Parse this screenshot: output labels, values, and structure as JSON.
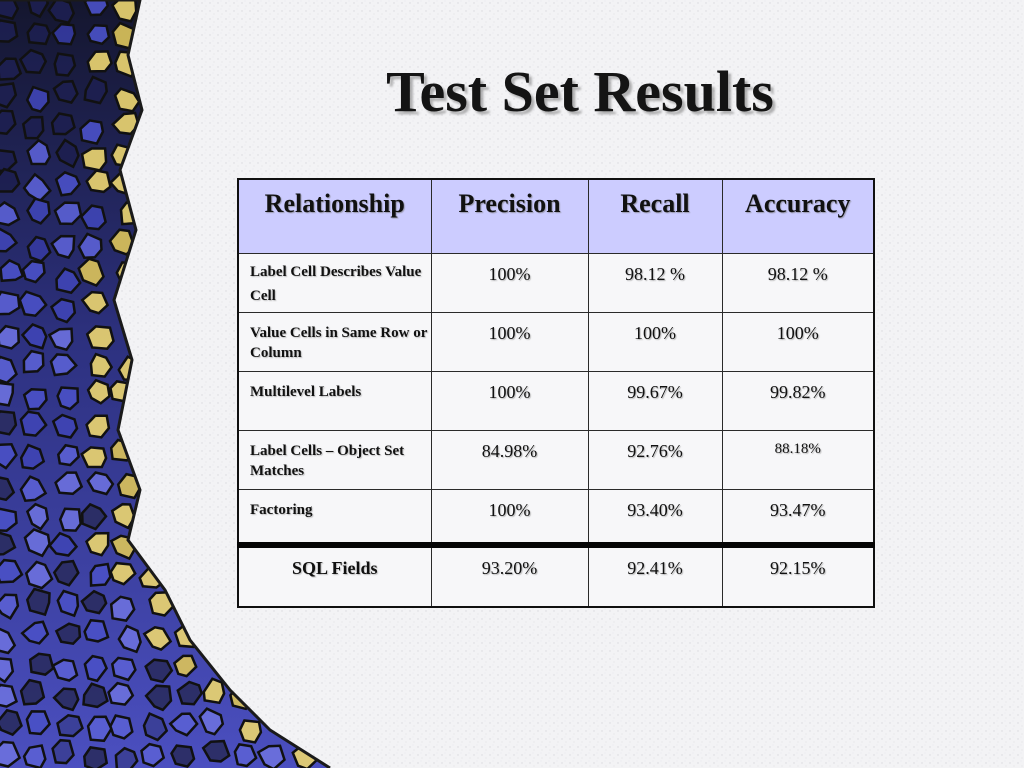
{
  "slide": {
    "title": "Test Set Results"
  },
  "table": {
    "headers": [
      "Relationship",
      "Precision",
      "Recall",
      "Accuracy"
    ],
    "rows": [
      {
        "relationship": "Label Cell  Describes Value Cell",
        "precision": "100%",
        "recall": "98.12 %",
        "accuracy": "98.12 %"
      },
      {
        "relationship": "Value Cells  in Same Row or Column",
        "precision": "100%",
        "recall": "100%",
        "accuracy": "100%"
      },
      {
        "relationship": "Multilevel Labels",
        "precision": "100%",
        "recall": "99.67%",
        "accuracy": "99.82%"
      },
      {
        "relationship": "Label Cells – Object Set Matches",
        "precision": "84.98%",
        "recall": "92.76%",
        "accuracy": "88.18%"
      },
      {
        "relationship": "Factoring",
        "precision": "100%",
        "recall": "93.40%",
        "accuracy": "93.47%"
      },
      {
        "relationship": "SQL Fields",
        "precision": "93.20%",
        "recall": "92.41%",
        "accuracy": "92.15%"
      }
    ]
  },
  "colors": {
    "header_fill": "#ccccff",
    "mosaic_dark": "#1c1f4a",
    "mosaic_blue": "#5558c8",
    "mosaic_yellow": "#e8d270"
  }
}
